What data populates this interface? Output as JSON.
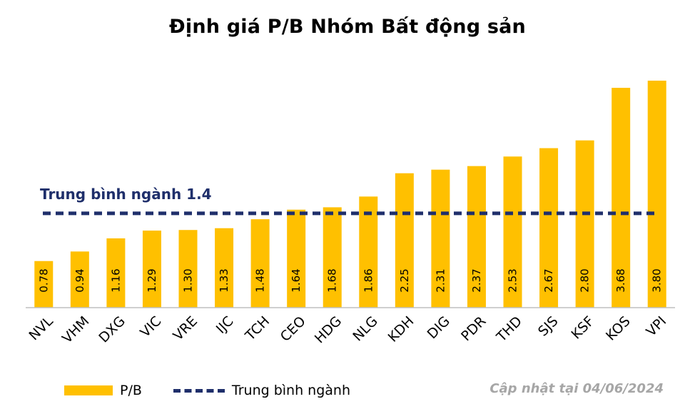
{
  "title": "Định giá P/B Nhóm Bất động sản",
  "updated": "Cập nhật tại 04/06/2024",
  "legend": {
    "bar_label": "P/B",
    "line_label": "Trung bình ngành"
  },
  "colors": {
    "bar": "#FFC000",
    "avg_line": "#1F2F6B"
  },
  "chart_data": {
    "type": "bar",
    "title": "Định giá P/B Nhóm Bất động sản",
    "categories": [
      "NVL",
      "VHM",
      "DXG",
      "VIC",
      "VRE",
      "IJC",
      "TCH",
      "CEO",
      "HDG",
      "NLG",
      "KDH",
      "DIG",
      "PDR",
      "THD",
      "SJS",
      "KSF",
      "KOS",
      "VPI"
    ],
    "series": [
      {
        "name": "P/B",
        "values": [
          0.78,
          0.94,
          1.16,
          1.29,
          1.3,
          1.33,
          1.48,
          1.64,
          1.68,
          1.86,
          2.25,
          2.31,
          2.37,
          2.53,
          2.67,
          2.8,
          3.68,
          3.8
        ]
      }
    ],
    "value_labels": [
      "0.78",
      "0.94",
      "1.16",
      "1.29",
      "1.30",
      "1.33",
      "1.48",
      "1.64",
      "1.68",
      "1.86",
      "2.25",
      "2.31",
      "2.37",
      "2.53",
      "2.67",
      "2.80",
      "3.68",
      "3.80"
    ],
    "reference_line": {
      "name": "Trung bình ngành",
      "value": 1.4,
      "label": "Trung bình ngành 1.4"
    },
    "ylim": [
      0,
      3.8
    ],
    "grid": false,
    "legend_position": "bottom-left"
  }
}
